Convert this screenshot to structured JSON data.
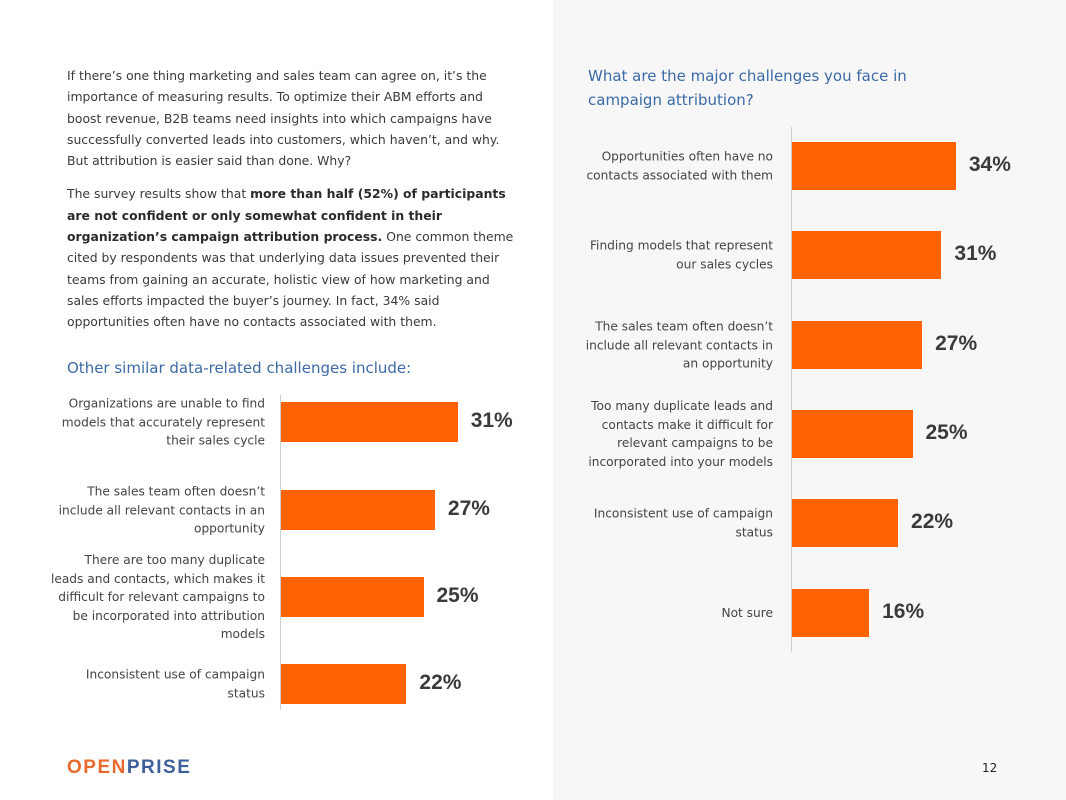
{
  "intro": {
    "p1": "If there’s one thing marketing and sales team can agree on, it’s the importance of measuring results. To optimize their ABM efforts and boost revenue, B2B teams need insights into which campaigns have successfully converted leads into customers, which haven’t, and why. But attribution is easier said than done. Why?",
    "p2_start": "The survey results show that ",
    "p2_bold": "more than half (52%) of participants are not confident or only somewhat confident in their organization’s campaign attribution process.",
    "p2_end": " One common theme cited by respondents was that underlying data issues prevented their teams from gaining an accurate, holistic view of how marketing and sales efforts impacted the buyer’s journey. In fact, 34% said opportunities often have no contacts associated with them."
  },
  "chart_data": [
    {
      "type": "bar",
      "orientation": "horizontal",
      "title": "Other similar data-related challenges include:",
      "categories": [
        "Organizations are unable to find models that accurately represent their sales cycle",
        "The sales team often doesn’t include all relevant contacts in an opportunity",
        "There are too many duplicate leads and contacts, which makes it difficult for relevant campaigns to be incorporated into attribution models",
        "Inconsistent use of campaign status"
      ],
      "values": [
        31,
        27,
        25,
        22
      ],
      "labels": [
        "31%",
        "27%",
        "25%",
        "22%"
      ],
      "unit": "%"
    },
    {
      "type": "bar",
      "orientation": "horizontal",
      "title": "What are the major challenges you face in campaign attribution?",
      "categories": [
        "Opportunities often have no contacts associated with them",
        "Finding models that represent our sales cycles",
        "The sales team often doesn’t include all relevant contacts in an opportunity",
        "Too many duplicate leads and contacts make it difficult for relevant campaigns to be incorporated into your models",
        "Inconsistent use of campaign status",
        "Not sure"
      ],
      "values": [
        34,
        31,
        27,
        25,
        22,
        16
      ],
      "labels": [
        "34%",
        "31%",
        "27%",
        "25%",
        "22%",
        "16%"
      ],
      "unit": "%"
    }
  ],
  "footer": {
    "logo_a": "OPEN",
    "logo_b": "PRISE",
    "page_number": "12"
  },
  "colors": {
    "bar": "#ff6200",
    "heading": "#3c6aa6",
    "logo_orange": "#e8692d",
    "logo_blue": "#3d5f9a"
  }
}
